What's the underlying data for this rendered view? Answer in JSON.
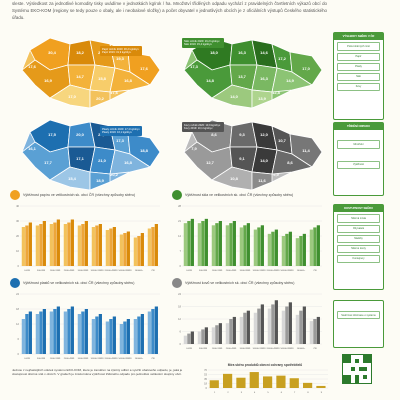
{
  "intro": "sleste. Výsledkost za jednotlivé komodity tisky uvádíme v jednotkách kg/rok / ha. Množství tříděných odpadu vychází z pravidelných čtvrtletních výkazů obcí do Systému EKO-KOM (regiony se tedy pouze o obaly, ale i neobalové složky) a počet obyvatel v jednotlivých obcích je z oficiálních výstupů Českého statistického úřadu.",
  "maps": [
    {
      "legend": [
        "Papír ročník 2020: 30,2 kg/obyv.",
        "Papír 2019: 31,9 kg/obyv."
      ],
      "legend_color": "#d98a0a",
      "values": [
        "17,6",
        "30,4",
        "18,2",
        "26,7",
        "19,3",
        "17,6",
        "16,9",
        "14,7",
        "15,8",
        "16,8",
        "17,0",
        "20,2",
        "17,6"
      ]
    },
    {
      "legend": [
        "Sklo ročník 2020: 16,2 kg/obyv.",
        "Sklo 2019: 15,4 kg/obyv."
      ],
      "legend_color": "#3f8f2f",
      "values": [
        "17,3",
        "18,0",
        "16,3",
        "14,6",
        "17,2",
        "17,0",
        "14,8",
        "13,7",
        "16,3",
        "14,9",
        "14,0",
        "13,9",
        "12,8"
      ]
    },
    {
      "legend": [
        "Plasty ročník 2020: 17,4 kg/obyv.",
        "Plasty 2019: 16,1 kg/obyv."
      ],
      "legend_color": "#1d6fb0",
      "values": [
        "16,1",
        "17,5",
        "20,0",
        "22,7",
        "17,3",
        "18,8",
        "17,7",
        "17,1",
        "21,0",
        "16,8",
        "15,4",
        "18,9",
        "20,2"
      ]
    },
    {
      "legend": [
        "Kovy ročník 2020: 10,9 kg/obyv.",
        "Kovy 2019: 10,1 kg/obyv."
      ],
      "legend_color": "#555555",
      "values": [
        "7,9",
        "8,6",
        "9,3",
        "12,0",
        "10,7",
        "11,4",
        "12,7",
        "9,1",
        "14,0",
        "8,6",
        "10,8",
        "11,6",
        "9,9"
      ]
    }
  ],
  "side_panels": [
    {
      "header": "VÝSLEDKY SBĚRU V ČR",
      "items": [
        "Počet sběrných míst",
        "Papír",
        "Plasty",
        "Sklo",
        "Kovy"
      ]
    },
    {
      "header": "TŘÍDĚNÍ ODPADU",
      "items": [
        "Množství",
        "Výtěžnost"
      ]
    },
    {
      "header": "DOSTUPNOST SBĚRU",
      "items": [
        "Sběrná místa",
        "Obyvatelé",
        "Nádoby",
        "Sběrné dvory",
        "Kontejnery"
      ]
    },
    {
      "header": "",
      "items": [
        "Souhrnné informace o systému"
      ]
    }
  ],
  "sections": [
    {
      "title": "Výtěžnost papíru ve velikostních sk. obcí ČR (všechny způsoby sběru)",
      "color": "#f0a020"
    },
    {
      "title": "Výtěžnost skla ve velikostních sk. obcí ČR (všechny způsoby sběru)",
      "color": "#3f8f2f"
    },
    {
      "title": "Výtěžnost plastů ve velikostních sk. obcí ČR (všechny způsoby sběru)",
      "color": "#1d6fb0"
    },
    {
      "title": "Výtěžnost kovů ve velikostních sk. obcí ČR (všechny způsoby sběru)",
      "color": "#666666"
    }
  ],
  "bottom_text": "Jednou z nejčastějších otázek systému EKO-KOM, které je zaměřen na zpětný odběr a využití obalového odpadu, je, jaká je dostupnost sběrné sítě v obcích. V grafech je znázorněna výtěžnost tříděného odpadu pro jednotlivé velikostní skupiny obcí.",
  "chart_data": [
    {
      "type": "bar",
      "title": "",
      "categories": [
        "0-499",
        "500-999",
        "1000-1999",
        "2000-4999",
        "5000-9999",
        "10000-19999",
        "20000-49999",
        "50000-99999",
        "100000+",
        "ČR"
      ],
      "series": [
        {
          "values": [
            26,
            27,
            28,
            28,
            27,
            26,
            24,
            21,
            19,
            25
          ]
        },
        {
          "values": [
            27,
            28,
            29,
            29,
            28,
            27,
            25,
            22,
            20,
            26
          ]
        },
        {
          "values": [
            29,
            30,
            31,
            31,
            30,
            28,
            26,
            23,
            22,
            28
          ]
        }
      ],
      "ylim": [
        0,
        40
      ],
      "colors": [
        "#f3c25c",
        "#eda63a",
        "#d98a0a"
      ]
    },
    {
      "type": "bar",
      "title": "",
      "categories": [
        "0-499",
        "500-999",
        "1000-1999",
        "2000-4999",
        "5000-9999",
        "10000-19999",
        "20000-49999",
        "50000-99999",
        "100000+",
        "ČR"
      ],
      "series": [
        {
          "values": [
            20,
            20,
            19,
            19,
            18,
            17,
            15,
            14,
            13,
            17
          ]
        },
        {
          "values": [
            21,
            21,
            20,
            20,
            19,
            18,
            16,
            15,
            14,
            18
          ]
        },
        {
          "values": [
            22,
            22,
            21,
            21,
            20,
            19,
            17,
            16,
            15,
            19
          ]
        }
      ],
      "ylim": [
        0,
        28
      ],
      "colors": [
        "#9cc97e",
        "#63a84a",
        "#3f8f2f"
      ]
    },
    {
      "type": "bar",
      "title": "",
      "categories": [
        "0-499",
        "500-999",
        "1000-1999",
        "2000-4999",
        "5000-9999",
        "10000-19999",
        "20000-49999",
        "50000-99999",
        "100000+",
        "ČR"
      ],
      "series": [
        {
          "values": [
            14,
            16,
            17,
            17,
            16,
            14,
            13,
            12,
            14,
            17
          ]
        },
        {
          "values": [
            16,
            17,
            18,
            18,
            17,
            15,
            14,
            13,
            15,
            18
          ]
        },
        {
          "values": [
            17,
            18,
            19,
            19,
            18,
            16,
            15,
            14,
            16,
            19
          ]
        }
      ],
      "ylim": [
        0,
        24
      ],
      "colors": [
        "#7fb4de",
        "#3d8bc9",
        "#1d6fb0"
      ]
    },
    {
      "type": "bar",
      "title": "",
      "categories": [
        "0-499",
        "500-999",
        "1000-1999",
        "2000-4999",
        "5000-9999",
        "10000-19999",
        "20000-49999",
        "50000-99999",
        "100000+",
        "ČR"
      ],
      "series": [
        {
          "values": [
            4,
            6,
            8,
            10,
            13,
            15,
            17,
            16,
            14,
            11
          ]
        },
        {
          "values": [
            5,
            7,
            9,
            12,
            15,
            17,
            19,
            18,
            16,
            12
          ]
        },
        {
          "values": [
            6,
            8,
            10,
            13,
            16,
            19,
            21,
            20,
            18,
            13
          ]
        }
      ],
      "ylim": [
        0,
        24
      ],
      "colors": [
        "#d7d7d7",
        "#9a9a9a",
        "#555555"
      ]
    },
    {
      "type": "bar",
      "title": "Míra sběru produktů obecní ochrany spotřebitelů",
      "categories": [
        "1",
        "2",
        "3",
        "4",
        "5",
        "6",
        "7",
        "8",
        "9"
      ],
      "series": [
        {
          "values": [
            30,
            55,
            40,
            62,
            45,
            48,
            38,
            20,
            8
          ]
        }
      ],
      "ylim": [
        0,
        70
      ],
      "colors": [
        "#c8a020"
      ]
    }
  ]
}
